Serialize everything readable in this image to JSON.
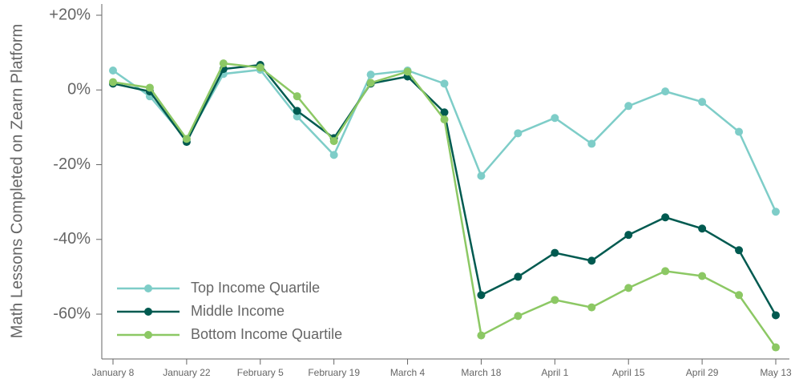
{
  "chart_data": {
    "type": "line",
    "y_label": "Math Lessons Completed on Zearn Platform",
    "categories": [
      "January 8",
      null,
      "January 22",
      null,
      "February 5",
      null,
      "February 19",
      null,
      "March 4",
      null,
      "March 18",
      null,
      "April 1",
      null,
      "April 15",
      null,
      "April 29",
      null,
      "May 13"
    ],
    "series": [
      {
        "name": "Top Income Quartile",
        "color": "#7ecdc8",
        "values": [
          5.2,
          -1.7,
          -13.3,
          4.3,
          5.4,
          -7.1,
          -17.4,
          4.1,
          5.2,
          1.7,
          -23,
          -11.6,
          -7.5,
          -14.4,
          -4.3,
          -0.4,
          -3.2,
          -11.2,
          -32.6
        ]
      },
      {
        "name": "Middle Income",
        "color": "#005a50",
        "values": [
          1.7,
          -0.4,
          -13.9,
          5.6,
          6.7,
          -5.6,
          -12.9,
          1.7,
          3.6,
          -6.0,
          -54.9,
          -50,
          -43.6,
          -45.7,
          -38.8,
          -34.1,
          -37.1,
          -42.9,
          -60.3
        ]
      },
      {
        "name": "Bottom Income Quartile",
        "color": "#8cc864",
        "values": [
          2.1,
          0.6,
          -13.1,
          7.1,
          6.0,
          -1.7,
          -13.7,
          1.9,
          4.9,
          -7.9,
          -65.7,
          -60.5,
          -56.2,
          -58.2,
          -53,
          -48.5,
          -49.8,
          -54.9,
          -68.9
        ]
      }
    ],
    "ylim": [
      -72,
      23
    ],
    "yticks": [
      {
        "value": 20,
        "label": "+20%"
      },
      {
        "value": 0,
        "label": "0%"
      },
      {
        "value": -20,
        "label": "-20%"
      },
      {
        "value": -40,
        "label": "-40%"
      },
      {
        "value": -60,
        "label": "-60%"
      }
    ],
    "legend": "lower left"
  }
}
